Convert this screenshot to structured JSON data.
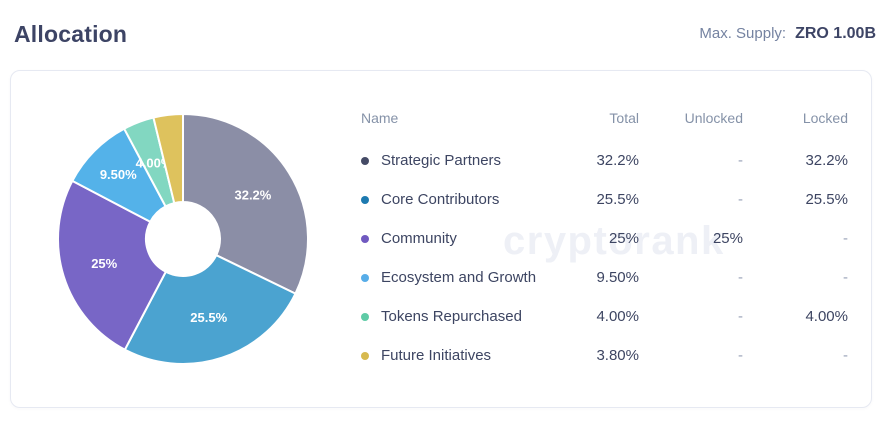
{
  "header": {
    "title": "Allocation",
    "max_supply_label": "Max. Supply:",
    "max_supply_value": "ZRO 1.00B"
  },
  "watermark": "cryptorank",
  "table": {
    "columns": [
      "Name",
      "Total",
      "Unlocked",
      "Locked"
    ],
    "rows": [
      {
        "name": "Strategic Partners",
        "total": "32.2%",
        "unlocked": "-",
        "locked": "32.2%",
        "dot_color": "#454b66"
      },
      {
        "name": "Core Contributors",
        "total": "25.5%",
        "unlocked": "-",
        "locked": "25.5%",
        "dot_color": "#1d7ab0"
      },
      {
        "name": "Community",
        "total": "25%",
        "unlocked": "25%",
        "locked": "-",
        "dot_color": "#7059c0"
      },
      {
        "name": "Ecosystem and Growth",
        "total": "9.50%",
        "unlocked": "-",
        "locked": "-",
        "dot_color": "#57ade8"
      },
      {
        "name": "Tokens Repurchased",
        "total": "4.00%",
        "unlocked": "-",
        "locked": "4.00%",
        "dot_color": "#5fcba6"
      },
      {
        "name": "Future Initiatives",
        "total": "3.80%",
        "unlocked": "-",
        "locked": "-",
        "dot_color": "#d7b94e"
      }
    ]
  },
  "chart_data": {
    "type": "pie",
    "donut": true,
    "start_angle_deg": 0,
    "direction": "clockwise",
    "title": "Allocation",
    "legend_position": "table-right",
    "slices": [
      {
        "label": "Strategic Partners",
        "value": 32.2,
        "display": "32.2%",
        "color": "#8b8ea6",
        "label_r": 0.66
      },
      {
        "label": "Core Contributors",
        "value": 25.5,
        "display": "25.5%",
        "color": "#4ba3d0",
        "label_r": 0.66
      },
      {
        "label": "Community",
        "value": 25.0,
        "display": "25%",
        "color": "#7866c6",
        "label_r": 0.66
      },
      {
        "label": "Ecosystem and Growth",
        "value": 9.5,
        "display": "9.50%",
        "color": "#54b2e9",
        "label_r": 0.73
      },
      {
        "label": "Tokens Repurchased",
        "value": 4.0,
        "display": "4.00%",
        "color": "#82d7c1",
        "label_r": 0.65
      },
      {
        "label": "Future Initiatives",
        "value": 3.8,
        "display": "",
        "color": "#dec25d",
        "label_r": 0
      }
    ]
  }
}
